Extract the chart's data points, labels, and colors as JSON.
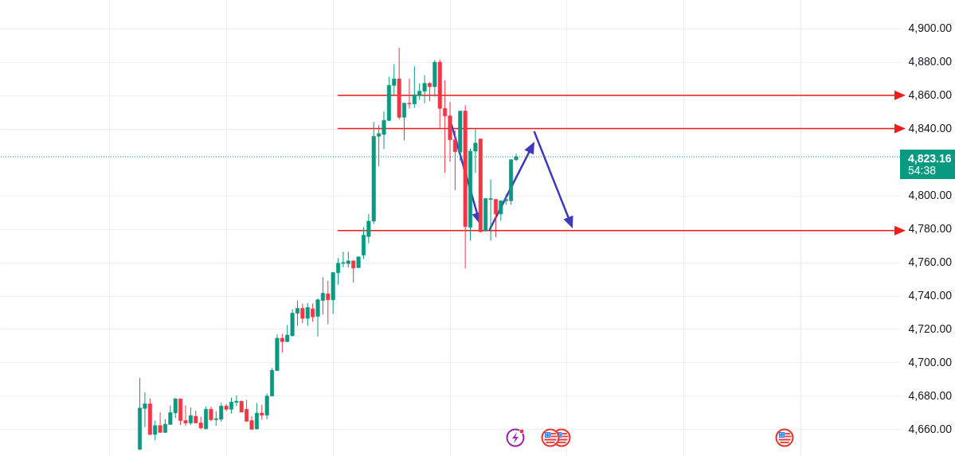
{
  "chart_data": {
    "type": "candlestick",
    "categories": [
      null,
      null,
      null,
      null,
      null,
      null,
      null,
      null,
      null,
      null,
      null,
      null,
      null,
      null,
      null,
      null,
      null,
      null,
      null,
      null,
      null,
      null,
      null,
      null,
      null,
      null,
      null,
      null,
      null,
      null,
      null,
      null,
      null,
      null,
      null,
      null,
      null,
      null,
      null,
      null,
      null,
      null,
      null,
      null,
      null,
      null,
      null,
      null,
      null,
      null,
      null,
      null,
      null,
      null,
      null,
      null,
      null,
      null,
      null,
      null,
      null,
      null,
      null,
      null,
      null,
      null,
      null,
      null,
      null,
      null,
      null,
      null,
      null,
      null,
      null,
      null,
      null,
      null,
      null,
      null,
      null,
      null,
      null,
      null,
      null,
      null,
      null,
      null,
      null,
      null,
      null,
      null,
      null,
      null,
      null,
      null,
      null,
      null,
      null,
      null,
      null,
      null,
      null,
      null,
      null,
      null,
      null,
      null,
      null,
      null,
      null,
      null,
      null,
      null,
      null,
      null,
      null,
      null,
      null,
      null,
      null,
      null,
      null,
      null,
      null,
      null,
      null,
      null,
      null,
      null,
      null,
      null,
      null,
      null,
      null,
      null,
      null,
      null,
      null,
      null,
      null,
      null,
      null,
      null,
      null,
      null,
      null,
      null,
      null,
      null,
      null,
      null,
      null,
      null,
      null,
      null,
      null,
      null,
      null,
      null,
      null,
      null,
      null,
      null,
      null,
      null,
      null,
      null,
      null,
      null,
      null,
      null,
      null,
      null,
      null,
      null,
      null
    ],
    "ohlc": [
      null,
      null,
      null,
      null,
      null,
      null,
      null,
      null,
      null,
      null,
      null,
      null,
      null,
      null,
      null,
      null,
      null,
      null,
      null,
      null,
      null,
      null,
      null,
      null,
      null,
      null,
      null,
      [
        4648,
        4690.8,
        4647.5,
        4672.7
      ],
      [
        4672.5,
        4682.1,
        4661.3,
        4675.2
      ],
      [
        4675.2,
        4678.5,
        4656.6,
        4656.9
      ],
      [
        4656.9,
        4665.2,
        4653.4,
        4662.2
      ],
      [
        4662.2,
        4670,
        4658,
        4658.1
      ],
      [
        4658.1,
        4666,
        4657.9,
        4663
      ],
      [
        4662.9,
        4674.2,
        4662.7,
        4670
      ],
      [
        4669.8,
        4678.7,
        4666.8,
        4678.2
      ],
      [
        4678.2,
        4678.4,
        4662.6,
        4665.2
      ],
      [
        4665.2,
        4674.2,
        4662.1,
        4663.7
      ],
      [
        4663.7,
        4673.1,
        4662.6,
        4668.2
      ],
      [
        4667.8,
        4671.1,
        4663.6,
        4663.8
      ],
      [
        4663.8,
        4667.6,
        4660,
        4660.8
      ],
      [
        4660.3,
        4673.6,
        4660.1,
        4672
      ],
      [
        4672,
        4673.6,
        4664.8,
        4665.7
      ],
      [
        4665.7,
        4670.8,
        4662.1,
        4666.3
      ],
      [
        4666,
        4675.8,
        4664.5,
        4673.9
      ],
      [
        4673.9,
        4675,
        4670.8,
        4672
      ],
      [
        4672,
        4679,
        4669.5,
        4676.3
      ],
      [
        4676.1,
        4680.2,
        4673.9,
        4676.8
      ],
      [
        4676.8,
        4677,
        4670.1,
        4670.3
      ],
      [
        4672,
        4677.6,
        4664.5,
        4664.8
      ],
      [
        4665.2,
        4667.9,
        4659.8,
        4660
      ],
      [
        4660.2,
        4675.8,
        4660,
        4669.7
      ],
      [
        4669.7,
        4674.7,
        4665.7,
        4668.4
      ],
      [
        4668.4,
        4681.5,
        4666,
        4679.9
      ],
      [
        4679.9,
        4696.8,
        4679.7,
        4695.3
      ],
      [
        4695.1,
        4716.8,
        4694.9,
        4714.5
      ],
      [
        4714.5,
        4717.1,
        4706,
        4712.5
      ],
      [
        4712.5,
        4722.4,
        4712.1,
        4716.4
      ],
      [
        4716,
        4731.9,
        4715.6,
        4729.5
      ],
      [
        4729.5,
        4737.1,
        4721.9,
        4732.4
      ],
      [
        4732.4,
        4735.2,
        4723.5,
        4726.4
      ],
      [
        4726.4,
        4735.6,
        4721.9,
        4732.9
      ],
      [
        4732.1,
        4735.2,
        4724.3,
        4727.3
      ],
      [
        4727.6,
        4738.3,
        4715.6,
        4737.5
      ],
      [
        4737.1,
        4751,
        4728.7,
        4741.4
      ],
      [
        4741.1,
        4748.9,
        4722.9,
        4737.5
      ],
      [
        4737.5,
        4754.1,
        4729.1,
        4753.8
      ],
      [
        4753.7,
        4762.5,
        4746.5,
        4759.4
      ],
      [
        4759.3,
        4766.3,
        4757,
        4759.8
      ],
      [
        4759.2,
        4766.3,
        4756.8,
        4760.8
      ],
      [
        4760.8,
        4761,
        4747.8,
        4756.5
      ],
      [
        4756.8,
        4763.4,
        4756.5,
        4763.2
      ],
      [
        4764.3,
        4781,
        4762,
        4776.2
      ],
      [
        4775.4,
        4788.9,
        4771.4,
        4784.6
      ],
      [
        4784.6,
        4844,
        4783,
        4835.4
      ],
      [
        4835.4,
        4842.1,
        4817.5,
        4837
      ],
      [
        4836.5,
        4850.3,
        4827.8,
        4844.9
      ],
      [
        4844.9,
        4871,
        4844.5,
        4865.9
      ],
      [
        4865.9,
        4878.6,
        4860.3,
        4869.8
      ],
      [
        4869.8,
        4888.4,
        4845.6,
        4846.8
      ],
      [
        4846.8,
        4855.4,
        4832.9,
        4855.2
      ],
      [
        4855.2,
        4869.8,
        4851.9,
        4854.8
      ],
      [
        4854.8,
        4877.3,
        4852.4,
        4860.3
      ],
      [
        4860,
        4867.1,
        4857.1,
        4862.4
      ],
      [
        4862.4,
        4871.9,
        4855.2,
        4867.1
      ],
      [
        4867.1,
        4867.8,
        4856.4,
        4865.1
      ],
      [
        4865.1,
        4881,
        4859.2,
        4879.8
      ],
      [
        4879.8,
        4881.4,
        4840.5,
        4852.1
      ],
      [
        4852.1,
        4869,
        4813.5,
        4847.6
      ],
      [
        4847.6,
        4856,
        4820.2,
        4833.3
      ],
      [
        4833.3,
        4838.9,
        4803.2,
        4826.2
      ],
      [
        4825.9,
        4850.5,
        4820.6,
        4850.5
      ],
      [
        4850.5,
        4854,
        4756.3,
        4781.3
      ],
      [
        4780.9,
        4828.1,
        4773,
        4826.5
      ],
      [
        4826.5,
        4839.7,
        4813.5,
        4831.3
      ],
      [
        4833.8,
        4834,
        4778,
        4778.3
      ],
      [
        4778.9,
        4798.3,
        4778.6,
        4798.1
      ],
      [
        4797.6,
        4809.5,
        4773,
        4798.1
      ],
      [
        4797.6,
        4797.8,
        4775.1,
        4788.9
      ],
      [
        4788.9,
        4796.9,
        4784.9,
        4796.8
      ],
      [
        4796.8,
        4800.8,
        4794.4,
        4797.6
      ],
      [
        4796.8,
        4821.5,
        4794.4,
        4821.4
      ],
      [
        4821.4,
        4824.9,
        4820.6,
        4823.16
      ],
      null,
      null,
      null,
      null,
      null,
      null,
      null,
      null,
      null,
      null,
      null,
      null,
      null,
      null,
      null,
      null,
      null,
      null,
      null,
      null,
      null,
      null,
      null,
      null,
      null,
      null,
      null,
      null,
      null,
      null,
      null,
      null,
      null,
      null,
      null,
      null,
      null,
      null,
      null,
      null,
      null,
      null,
      null,
      null,
      null,
      null,
      null,
      null,
      null,
      null,
      null,
      null,
      null,
      null,
      null,
      null,
      null,
      null,
      null,
      null,
      null,
      null,
      null,
      null,
      null,
      null,
      null,
      null,
      null,
      null,
      null,
      null,
      null,
      null,
      null
    ],
    "colors": [
      null,
      null,
      null,
      null,
      null,
      null,
      null,
      null,
      null,
      null,
      null,
      null,
      null,
      null,
      null,
      null,
      null,
      null,
      null,
      null,
      null,
      null,
      null,
      null,
      null,
      null,
      null,
      "#089981",
      "#089981",
      "#f23645",
      "#089981",
      "#f23645",
      "#089981",
      "#089981",
      "#089981",
      "#f23645",
      "#f23645",
      "#089981",
      "#f23645",
      "#f23645",
      "#089981",
      "#f23645",
      "#089981",
      "#089981",
      "#f23645",
      "#089981",
      "#089981",
      "#f23645",
      "#f23645",
      "#f23645",
      "#089981",
      "#f23645",
      "#089981",
      "#089981",
      "#089981",
      "#f23645",
      "#089981",
      "#089981",
      "#089981",
      "#f23645",
      "#089981",
      "#f23645",
      "#089981",
      "#089981",
      "#f23645",
      "#089981",
      "#089981",
      "#089981",
      "#089981",
      "#f23645",
      "#089981",
      "#089981",
      "#089981",
      "#089981",
      "#089981",
      "#089981",
      "#089981",
      "#089981",
      "#f23645",
      "#089981",
      "#f23645",
      "#089981",
      "#089981",
      "#089981",
      "#f23645",
      "#089981",
      "#f23645",
      "#f23645",
      "#f23645",
      "#f23645",
      "#089981",
      "#f23645",
      "#089981",
      "#089981",
      "#f23645",
      "#089981",
      "#089981",
      "#f23645",
      "#089981",
      "#089981",
      "#089981",
      "#089981",
      null,
      null,
      null,
      null,
      null,
      null,
      null,
      null,
      null,
      null,
      null,
      null,
      null,
      null,
      null,
      null,
      null,
      null,
      null,
      null,
      null,
      null,
      null,
      null,
      null,
      null,
      null,
      null,
      null,
      null,
      null,
      null,
      null,
      null,
      null,
      null,
      null,
      null,
      null,
      null,
      null,
      null,
      null,
      null,
      null,
      null,
      null,
      null,
      null,
      null,
      null,
      null,
      null,
      null,
      null,
      null,
      null,
      null,
      null,
      null,
      null,
      null,
      null,
      null,
      null,
      null,
      null,
      null,
      null,
      null,
      null,
      null,
      null,
      null,
      null
    ],
    "ylim": [
      4644,
      4917
    ],
    "yticks": [
      {
        "value": 4660,
        "label": "4,660.00"
      },
      {
        "value": 4680,
        "label": "4,680.00"
      },
      {
        "value": 4700,
        "label": "4,700.00"
      },
      {
        "value": 4720,
        "label": "4,720.00"
      },
      {
        "value": 4740,
        "label": "4,740.00"
      },
      {
        "value": 4760,
        "label": "4,760.00"
      },
      {
        "value": 4780,
        "label": "4,780.00"
      },
      {
        "value": 4800,
        "label": "4,800.00"
      },
      {
        "value": 4840,
        "label": "4,840.00"
      },
      {
        "value": 4860,
        "label": "4,860.00"
      },
      {
        "value": 4880,
        "label": "4,880.00"
      },
      {
        "value": 4900,
        "label": "4,900.00"
      }
    ],
    "grid": true,
    "ref_lines": [
      {
        "axis": "y",
        "value": 4860,
        "color": "#f21c1c"
      },
      {
        "axis": "y",
        "value": 4840,
        "color": "#f21c1c"
      },
      {
        "axis": "y",
        "value": 4779,
        "color": "#f21c1c"
      },
      {
        "axis": "y",
        "value": 4823.16,
        "label": "4,823.16",
        "color": "#089981",
        "line_style": "dotted"
      }
    ],
    "annotations": [
      "54:38"
    ]
  }
}
